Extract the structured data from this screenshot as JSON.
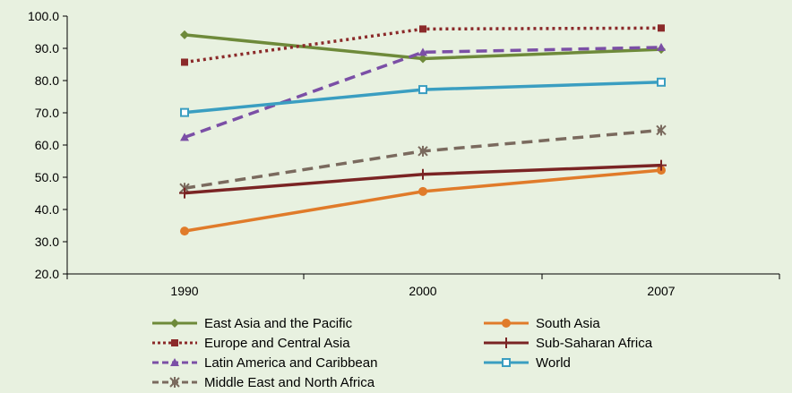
{
  "chart_data": {
    "type": "line",
    "categories": [
      "1990",
      "2000",
      "2007"
    ],
    "ylim": [
      20,
      100
    ],
    "yticks": [
      "100.0",
      "90.0",
      "80.0",
      "70.0",
      "60.0",
      "50.0",
      "40.0",
      "30.0",
      "20.0"
    ],
    "grid": false,
    "legend_position": "bottom",
    "series": [
      {
        "name": "East Asia and the Pacific",
        "values": [
          94.2,
          86.8,
          89.7
        ],
        "color": "#6e8a3a",
        "dash": "solid",
        "marker": "diamond"
      },
      {
        "name": "Europe and Central Asia",
        "values": [
          85.7,
          96.0,
          96.3
        ],
        "color": "#8b2a2a",
        "dash": "dotted",
        "marker": "square"
      },
      {
        "name": "Latin America and Caribbean",
        "values": [
          62.4,
          88.8,
          90.3
        ],
        "color": "#7b4fa6",
        "dash": "dashed",
        "marker": "triangle"
      },
      {
        "name": "Middle East and North Africa",
        "values": [
          46.6,
          58.1,
          64.6
        ],
        "color": "#7a6a5e",
        "dash": "dashed",
        "marker": "star"
      },
      {
        "name": "South Asia",
        "values": [
          33.3,
          45.6,
          52.2
        ],
        "color": "#e07b2a",
        "dash": "solid",
        "marker": "circle"
      },
      {
        "name": "Sub-Saharan Africa",
        "values": [
          45.1,
          50.9,
          53.7
        ],
        "color": "#7a2424",
        "dash": "solid",
        "marker": "plus"
      },
      {
        "name": "World",
        "values": [
          70.1,
          77.2,
          79.5
        ],
        "color": "#3a9ec1",
        "dash": "solid",
        "marker": "square-open"
      }
    ]
  }
}
